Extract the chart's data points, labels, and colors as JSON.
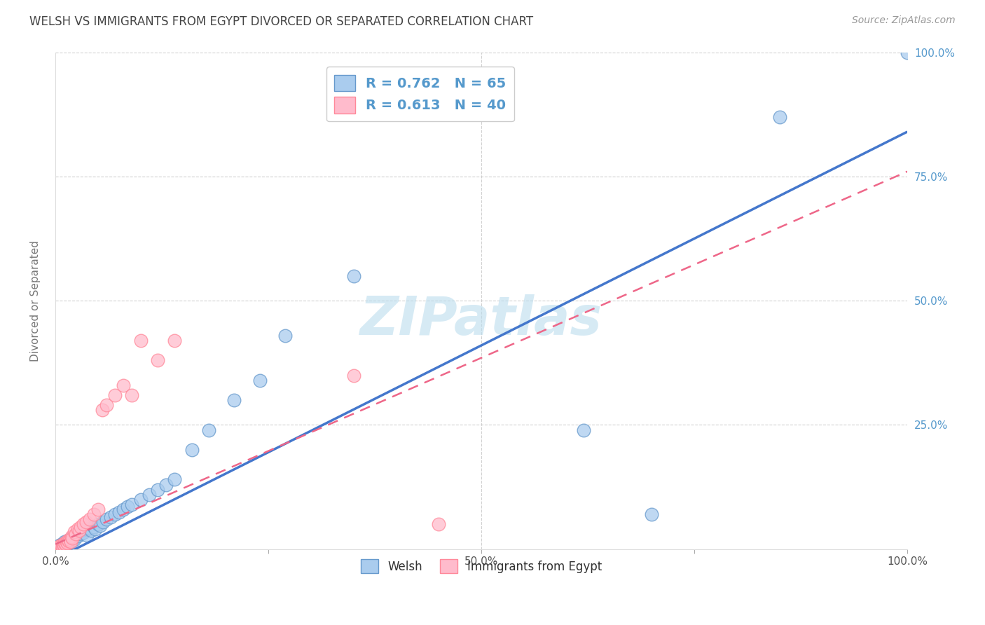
{
  "title": "WELSH VS IMMIGRANTS FROM EGYPT DIVORCED OR SEPARATED CORRELATION CHART",
  "source": "Source: ZipAtlas.com",
  "ylabel": "Divorced or Separated",
  "xlim": [
    0,
    1
  ],
  "ylim": [
    0,
    1
  ],
  "welsh_R": 0.762,
  "welsh_N": 65,
  "egypt_R": 0.613,
  "egypt_N": 40,
  "blue_scatter_face": "#AACCEE",
  "blue_scatter_edge": "#6699CC",
  "pink_scatter_face": "#FFBBCC",
  "pink_scatter_edge": "#FF8899",
  "trend_blue": "#4477CC",
  "trend_pink": "#EE6688",
  "background": "#FFFFFF",
  "grid_color": "#CCCCCC",
  "watermark_color": "#BBDDEE",
  "right_tick_color": "#5599CC",
  "title_color": "#444444",
  "welsh_x": [
    0.001,
    0.002,
    0.003,
    0.004,
    0.005,
    0.005,
    0.006,
    0.007,
    0.007,
    0.008,
    0.009,
    0.01,
    0.01,
    0.011,
    0.012,
    0.013,
    0.014,
    0.015,
    0.015,
    0.016,
    0.017,
    0.018,
    0.019,
    0.02,
    0.021,
    0.022,
    0.023,
    0.025,
    0.026,
    0.027,
    0.028,
    0.03,
    0.032,
    0.033,
    0.035,
    0.037,
    0.04,
    0.042,
    0.045,
    0.047,
    0.05,
    0.053,
    0.056,
    0.06,
    0.065,
    0.07,
    0.075,
    0.08,
    0.085,
    0.09,
    0.1,
    0.11,
    0.12,
    0.13,
    0.14,
    0.16,
    0.18,
    0.21,
    0.24,
    0.27,
    0.35,
    0.62,
    0.7,
    0.85,
    1.0
  ],
  "welsh_y": [
    0.002,
    0.001,
    0.005,
    0.003,
    0.004,
    0.008,
    0.006,
    0.003,
    0.01,
    0.005,
    0.008,
    0.012,
    0.007,
    0.015,
    0.01,
    0.013,
    0.009,
    0.018,
    0.014,
    0.016,
    0.02,
    0.015,
    0.022,
    0.018,
    0.025,
    0.02,
    0.028,
    0.03,
    0.026,
    0.032,
    0.035,
    0.03,
    0.038,
    0.033,
    0.04,
    0.028,
    0.042,
    0.038,
    0.045,
    0.04,
    0.05,
    0.048,
    0.055,
    0.06,
    0.065,
    0.07,
    0.075,
    0.08,
    0.085,
    0.09,
    0.1,
    0.11,
    0.12,
    0.13,
    0.14,
    0.2,
    0.24,
    0.3,
    0.34,
    0.43,
    0.55,
    0.24,
    0.07,
    0.87,
    1.0
  ],
  "egypt_x": [
    0.001,
    0.002,
    0.003,
    0.004,
    0.005,
    0.006,
    0.007,
    0.008,
    0.009,
    0.01,
    0.011,
    0.012,
    0.013,
    0.014,
    0.015,
    0.016,
    0.017,
    0.018,
    0.019,
    0.02,
    0.022,
    0.024,
    0.026,
    0.028,
    0.03,
    0.033,
    0.036,
    0.04,
    0.045,
    0.05,
    0.055,
    0.06,
    0.07,
    0.08,
    0.09,
    0.1,
    0.12,
    0.14,
    0.35,
    0.45
  ],
  "egypt_y": [
    0.001,
    0.002,
    0.003,
    0.005,
    0.004,
    0.006,
    0.008,
    0.005,
    0.01,
    0.008,
    0.012,
    0.01,
    0.015,
    0.013,
    0.018,
    0.016,
    0.02,
    0.015,
    0.025,
    0.022,
    0.035,
    0.03,
    0.04,
    0.038,
    0.045,
    0.05,
    0.055,
    0.06,
    0.07,
    0.08,
    0.28,
    0.29,
    0.31,
    0.33,
    0.31,
    0.42,
    0.38,
    0.42,
    0.35,
    0.05
  ],
  "blue_trend_x0": 0.0,
  "blue_trend_y0": -0.02,
  "blue_trend_x1": 1.0,
  "blue_trend_y1": 0.84,
  "pink_trend_x0": 0.0,
  "pink_trend_y0": 0.01,
  "pink_trend_x1": 1.0,
  "pink_trend_y1": 0.76
}
